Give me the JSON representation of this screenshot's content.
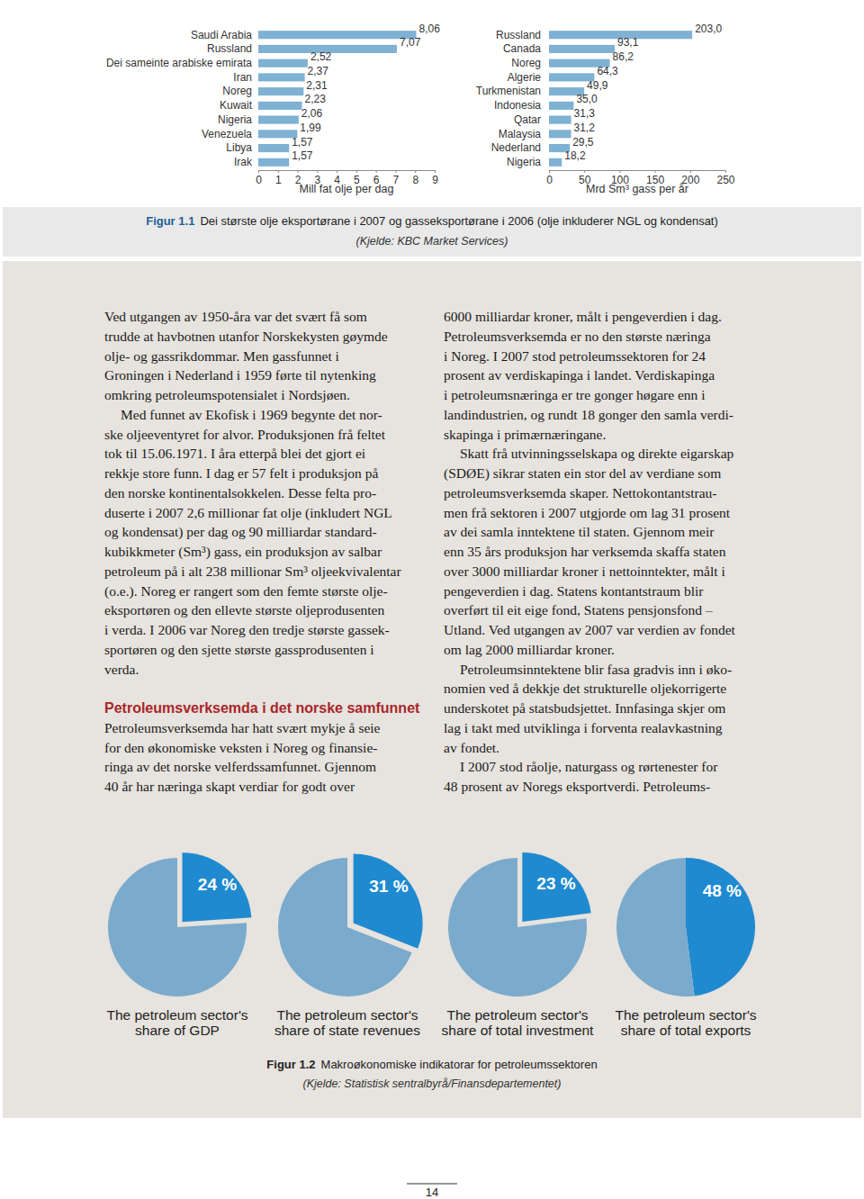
{
  "chart_data": [
    {
      "type": "bar",
      "orientation": "horizontal",
      "categories": [
        "Saudi Arabia",
        "Russland",
        "Dei sameinte arabiske emirata",
        "Iran",
        "Noreg",
        "Kuwait",
        "Nigeria",
        "Venezuela",
        "Libya",
        "Irak"
      ],
      "values": [
        8.06,
        7.07,
        2.52,
        2.37,
        2.31,
        2.23,
        2.06,
        1.99,
        1.57,
        1.57
      ],
      "value_labels": [
        "8,06",
        "7,07",
        "2,52",
        "2,37",
        "2,31",
        "2,23",
        "2,06",
        "1,99",
        "1,57",
        "1,57"
      ],
      "data_labels": true,
      "color": "#7fb1d3",
      "x_label": "Mill fat olje per dag",
      "xlim": [
        0,
        9
      ],
      "xticks": [
        0,
        1,
        2,
        3,
        4,
        5,
        6,
        7,
        8,
        9
      ],
      "grid": false
    },
    {
      "type": "bar",
      "orientation": "horizontal",
      "categories": [
        "Russland",
        "Canada",
        "Noreg",
        "Algerie",
        "Turkmenistan",
        "Indonesia",
        "Qatar",
        "Malaysia",
        "Nederland",
        "Nigeria"
      ],
      "values": [
        203.0,
        93.1,
        86.2,
        64.3,
        49.9,
        35.0,
        31.3,
        31.2,
        29.5,
        18.2
      ],
      "value_labels": [
        "203,0",
        "93,1",
        "86,2",
        "64,3",
        "49,9",
        "35,0",
        "31,3",
        "31,2",
        "29,5",
        "18,2"
      ],
      "data_labels": true,
      "color": "#7fb1d3",
      "x_label": "Mrd Sm³ gass per år",
      "xlim": [
        0,
        250
      ],
      "xticks": [
        0,
        50,
        100,
        150,
        200,
        250
      ],
      "grid": false
    },
    {
      "type": "pie",
      "title": "The petroleum sector's share of GDP",
      "values": [
        24,
        76
      ],
      "value_labels": [
        "24 %",
        null
      ],
      "data_labels": true,
      "colors": [
        "#1f8ad0",
        "#7aabcc"
      ]
    },
    {
      "type": "pie",
      "title": "The petroleum sector's share of state revenues",
      "values": [
        31,
        69
      ],
      "value_labels": [
        "31 %",
        null
      ],
      "data_labels": true,
      "colors": [
        "#1f8ad0",
        "#7aabcc"
      ]
    },
    {
      "type": "pie",
      "title": "The petroleum sector's share of total investment",
      "values": [
        23,
        77
      ],
      "value_labels": [
        "23 %",
        null
      ],
      "data_labels": true,
      "colors": [
        "#1f8ad0",
        "#7aabcc"
      ]
    },
    {
      "type": "pie",
      "title": "The petroleum sector's share of total exports",
      "values": [
        48,
        52
      ],
      "value_labels": [
        "48 %",
        null
      ],
      "data_labels": true,
      "colors": [
        "#1f8ad0",
        "#7aabcc"
      ]
    }
  ],
  "figures": [
    {
      "label": "Figur 1.1",
      "caption": "Dei største olje eksportørane i 2007 og gasseksportørane i 2006 (olje inkluderer NGL og kondensat)",
      "source": "(Kjelde: KBC Market Services)"
    },
    {
      "label": "Figur 1.2",
      "caption": "Makroøkonomiske indikatorar for petroleumssektoren",
      "source": "(Kjelde: Statistisk sentralbyrå/Finansdepartementet)"
    }
  ],
  "columns": [
    [
      {
        "lines": [
          "Ved utgangen av 1950-åra var det svært få som",
          "trudde at havbotnen utanfor Norskekysten gøymde",
          "olje- og gassrikdommar. Men gassfunnet i",
          "Groningen i Nederland i 1959 førte til nytenking",
          "omkring petroleumspotensialet i Nordsjøen."
        ]
      },
      {
        "lines": [
          "Med funnet av Ekofisk i 1969 begynte det nor-",
          "ske oljeeventyret for alvor. Produksjonen frå feltet",
          "tok til 15.06.1971. I åra etterpå blei det gjort ei",
          "rekkje store funn. I dag er 57 felt i produksjon på",
          "den norske kontinentalsokkelen. Desse felta pro-",
          "duserte i 2007 2,6 millionar fat olje (inkludert NGL",
          "og kondensat) per dag og 90 milliardar standard-",
          "kubikkmeter (Sm³) gass, ein produksjon av salbar",
          "petroleum på i alt 238 millionar Sm³ oljeekvivalentar",
          "(o.e.). Noreg er rangert som den femte største olje-",
          "eksportøren og den ellevte største oljeprodusenten",
          "i verda. I 2006 var Noreg den tredje største gassek-",
          "sportøren og den sjette største gassprodusenten i",
          "verda."
        ]
      },
      {
        "heading": "Petroleumsverksemda i det norske samfunnet"
      },
      {
        "lines": [
          "Petroleumsverksemda har hatt svært mykje å seie",
          "for den økonomiske veksten i Noreg og finansie-",
          "ringa av det norske velferdssamfunnet. Gjennom",
          "40 år har næringa skapt verdiar for godt over"
        ]
      }
    ],
    [
      {
        "lines": [
          "6000 milliardar kroner, målt i pengeverdien i dag.",
          "Petroleumsverksemda er no den største næringa",
          "i Noreg. I 2007 stod petroleumssektoren for 24",
          "prosent av verdiskapinga i landet. Verdiskapinga",
          "i petroleumsnæringa er tre gonger høgare enn i",
          "landindustrien, og rundt 18 gonger den samla verdi-",
          "skapinga i primærnæringane."
        ]
      },
      {
        "lines": [
          "Skatt frå utvinningsselskapa og direkte eigarskap",
          "(SDØE) sikrar staten ein stor del av verdiane som",
          "petroleumsverksemda skaper. Nettokontantstrau-",
          "men frå sektoren i 2007 utgjorde om lag 31 prosent",
          "av dei samla inntektene til staten. Gjennom meir",
          "enn 35 års produksjon har verksemda skaffa staten",
          "over 3000 milliardar kroner i nettoinntekter, målt i",
          "pengeverdien i dag. Statens kontantstraum blir",
          "overført til eit eige fond, Statens pensjonsfond –",
          "Utland. Ved utgangen av 2007 var verdien av fondet",
          "om lag 2000 milliardar kroner."
        ]
      },
      {
        "lines": [
          "Petroleumsinntektene blir fasa gradvis inn i øko-",
          "nomien ved å dekkje det strukturelle oljekorrigerte",
          "underskotet på statsbudsjettet. Innfasinga skjer om",
          "lag i takt med utviklinga i forventa realavkastning",
          "av fondet."
        ]
      },
      {
        "lines": [
          "I 2007 stod råolje, naturgass og rørtenester for",
          "48 prosent av Noregs eksportverdi. Petroleums-"
        ]
      }
    ]
  ],
  "page_number": "14"
}
